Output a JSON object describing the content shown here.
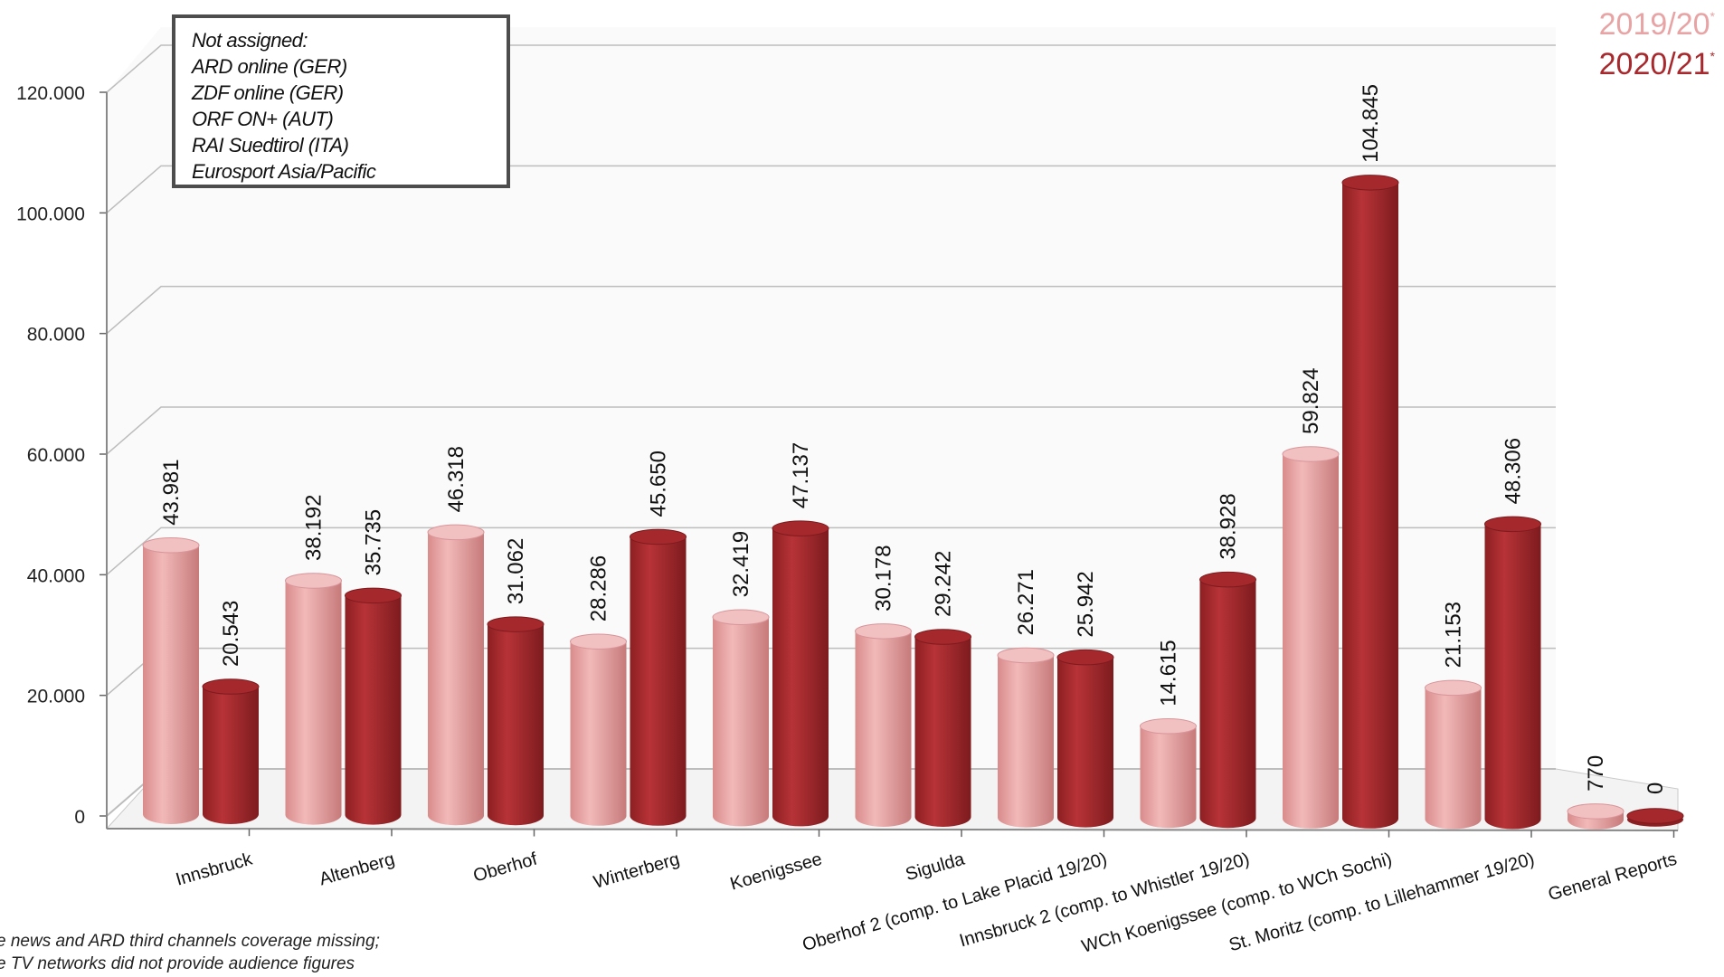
{
  "legend_box": {
    "lines": [
      "Not assigned:",
      "ARD online (GER)",
      "ZDF online (GER)",
      "ORF ON+ (AUT)",
      "RAI Suedtirol (ITA)",
      "Eurosport Asia/Pacific"
    ]
  },
  "footnotes": [
    "e news and ARD third channels coverage missing;",
    "e TV networks did not provide audience figures"
  ],
  "colors": {
    "series_2019": "#e8a4a4",
    "series_2020": "#a8292d",
    "grid": "#bdbdbd"
  },
  "chart_data": {
    "type": "bar",
    "categories": [
      "Innsbruck",
      "Altenberg",
      "Oberhof",
      "Winterberg",
      "Koenigssee",
      "Sigulda",
      "Oberhof 2 (comp. to Lake Placid 19/20)",
      "Innsbruck 2 (comp. to Whistler 19/20)",
      "WCh Koenigssee (comp. to WCh Sochi)",
      "St. Moritz (comp. to Lillehammer 19/20)",
      "General Reports"
    ],
    "series": [
      {
        "name": "2019/20",
        "marker": "*",
        "values": [
          43981,
          38192,
          46318,
          28286,
          32419,
          30178,
          26271,
          14615,
          59824,
          21153,
          770
        ],
        "labels": [
          "43.981",
          "38.192",
          "46.318",
          "28.286",
          "32.419",
          "30.178",
          "26.271",
          "14.615",
          "59.824",
          "21.153",
          "770"
        ]
      },
      {
        "name": "2020/21",
        "marker": "*",
        "values": [
          20543,
          35735,
          31062,
          45650,
          47137,
          29242,
          25942,
          38928,
          104845,
          48306,
          0
        ],
        "labels": [
          "20.543",
          "35.735",
          "31.062",
          "45.650",
          "47.137",
          "29.242",
          "25.942",
          "38.928",
          "104.845",
          "48.306",
          "0"
        ]
      }
    ],
    "yticks": [
      "0",
      "20.000",
      "40.000",
      "60.000",
      "80.000",
      "100.000",
      "120.000"
    ],
    "ylim": [
      0,
      120000
    ],
    "grid": true,
    "legend": "top-right"
  }
}
